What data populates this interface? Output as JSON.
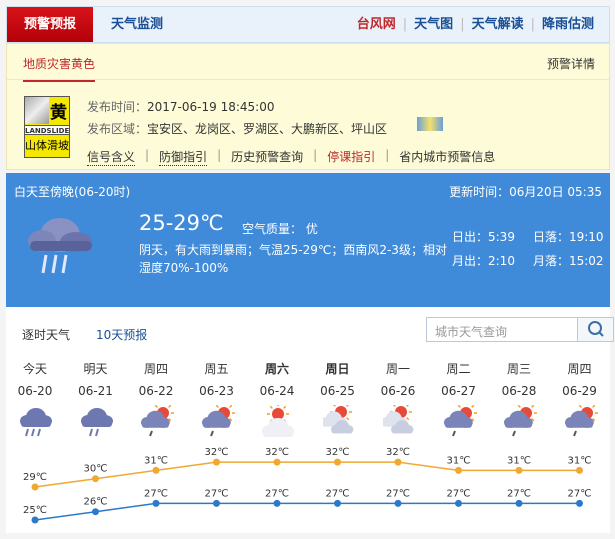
{
  "nav": {
    "active": "预警预报",
    "tab2": "天气监测",
    "links": [
      "台风网",
      "天气图",
      "天气解读",
      "降雨估测"
    ],
    "link_colors": [
      "#c0282c",
      "#1a4f95",
      "#1a4f95",
      "#1a4f95"
    ]
  },
  "warning": {
    "tab": "地质灾害黄色",
    "detail": "预警详情",
    "badge": {
      "level": "黄",
      "en": "LANDSLIDE",
      "cn": "山体滑坡"
    },
    "time_label": "发布时间：",
    "time": "2017-06-19 18:45:00",
    "area_label": "发布区域：",
    "area": "宝安区、龙岗区、罗湖区、大鹏新区、坪山区",
    "links": [
      "信号含义",
      "防御指引",
      "历史预警查询",
      "停课指引",
      "省内城市预警信息"
    ]
  },
  "current": {
    "period": "白天至傍晚(06-20时)",
    "updated": "更新时间：06月20日 05:35",
    "temp": "25-29℃",
    "air": "空气质量： 优",
    "desc": "阴天，有大雨到暴雨；气温25-29℃；西南风2-3级；相对湿度70%-100%",
    "sunrise": "日出：5:39",
    "sunset": "日落：19:10",
    "moonrise": "月出：2:10",
    "moonset": "月落：15:02",
    "icon": "heavy-rain-icon"
  },
  "tabs": [
    "逐时天气",
    "10天预报"
  ],
  "search": {
    "placeholder": "城市天气查询"
  },
  "chart_data": {
    "type": "line",
    "days": [
      {
        "day": "今天",
        "date": "06-20",
        "icon": "heavy-rain"
      },
      {
        "day": "明天",
        "date": "06-21",
        "icon": "rain"
      },
      {
        "day": "周四",
        "date": "06-22",
        "icon": "shower"
      },
      {
        "day": "周五",
        "date": "06-23",
        "icon": "shower"
      },
      {
        "day": "周六",
        "date": "06-24",
        "icon": "sunny-cloudy"
      },
      {
        "day": "周日",
        "date": "06-25",
        "icon": "partly-cloudy"
      },
      {
        "day": "周一",
        "date": "06-26",
        "icon": "partly-cloudy"
      },
      {
        "day": "周二",
        "date": "06-27",
        "icon": "shower"
      },
      {
        "day": "周三",
        "date": "06-28",
        "icon": "shower"
      },
      {
        "day": "周四",
        "date": "06-29",
        "icon": "shower"
      }
    ],
    "bold_days": [
      4,
      5
    ],
    "series": [
      {
        "values": [
          29,
          30,
          31,
          32,
          32,
          32,
          32,
          31,
          31,
          31
        ],
        "color": "#f0a830"
      },
      {
        "values": [
          25,
          26,
          27,
          27,
          27,
          27,
          27,
          27,
          27,
          27
        ],
        "color": "#2a7ac8"
      }
    ],
    "unit": "℃"
  }
}
